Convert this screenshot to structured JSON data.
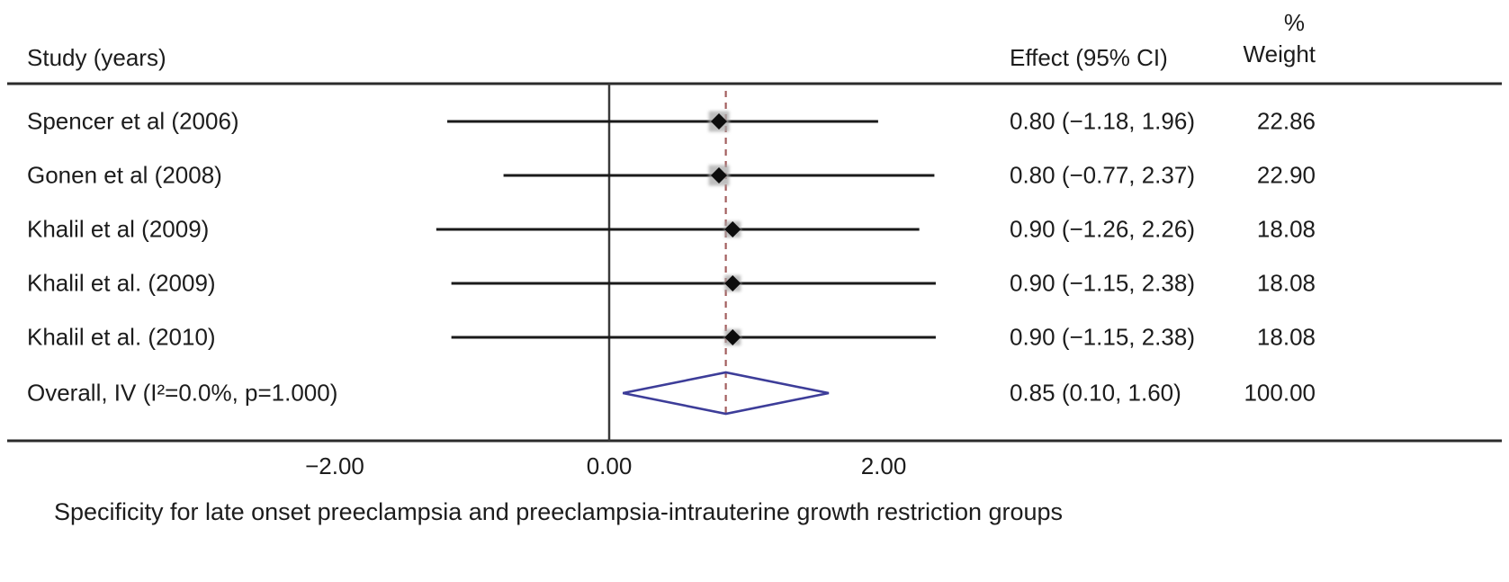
{
  "header": {
    "study_col": "Study (years)",
    "effect_col": "Effect (95% CI)",
    "percent": "%",
    "weight_col": "Weight"
  },
  "colors": {
    "rule": "#2b2b2b",
    "axis": "#3a3a3a",
    "ci_line": "#1a1a1a",
    "marker": "#0d0d0d",
    "weight_box": "#a9a9a9",
    "diamond": "#3d3d99",
    "dashed": "#a35f5f",
    "text": "#1c1c1c"
  },
  "chart_data": {
    "type": "forest",
    "title": "",
    "x_ticks": [
      {
        "value": -2,
        "label": "−2.00"
      },
      {
        "value": 0,
        "label": "0.00"
      },
      {
        "value": 2,
        "label": "2.00"
      }
    ],
    "reference_line": 0,
    "overall_line": 0.85,
    "studies": [
      {
        "label": "Spencer et al (2006)",
        "effect": 0.8,
        "ci_low": -1.18,
        "ci_high": 1.96,
        "effect_text": "0.80 (−1.18, 1.96)",
        "weight": 22.86,
        "weight_text": "22.86"
      },
      {
        "label": "Gonen et al (2008)",
        "effect": 0.8,
        "ci_low": -0.77,
        "ci_high": 2.37,
        "effect_text": "0.80 (−0.77, 2.37)",
        "weight": 22.9,
        "weight_text": "22.90"
      },
      {
        "label": "Khalil et al (2009)",
        "effect": 0.9,
        "ci_low": -1.26,
        "ci_high": 2.26,
        "effect_text": "0.90 (−1.26, 2.26)",
        "weight": 18.08,
        "weight_text": "18.08"
      },
      {
        "label": "Khalil et al. (2009)",
        "effect": 0.9,
        "ci_low": -1.15,
        "ci_high": 2.38,
        "effect_text": "0.90 (−1.15, 2.38)",
        "weight": 18.08,
        "weight_text": "18.08"
      },
      {
        "label": "Khalil et al. (2010)",
        "effect": 0.9,
        "ci_low": -1.15,
        "ci_high": 2.38,
        "effect_text": "0.90 (−1.15, 2.38)",
        "weight": 18.08,
        "weight_text": "18.08"
      }
    ],
    "overall": {
      "label": "Overall, IV (I²=0.0%, p=1.000)",
      "effect": 0.85,
      "ci_low": 0.1,
      "ci_high": 1.6,
      "effect_text": "0.85 (0.10, 1.60)",
      "weight_text": "100.00"
    },
    "caption": "Specificity for late onset preeclampsia and preeclampsia-intrauterine growth restriction groups"
  }
}
